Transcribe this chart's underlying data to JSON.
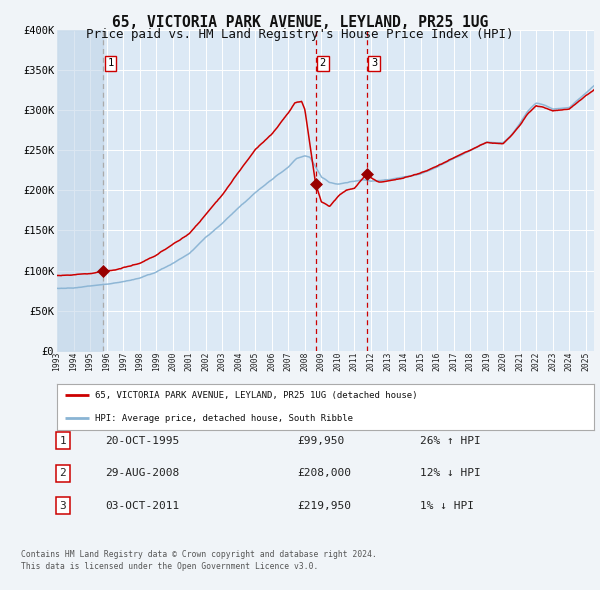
{
  "title": "65, VICTORIA PARK AVENUE, LEYLAND, PR25 1UG",
  "subtitle": "Price paid vs. HM Land Registry's House Price Index (HPI)",
  "title_fontsize": 10.5,
  "subtitle_fontsize": 9,
  "background_color": "#f0f4f8",
  "plot_bg_color": "#dce9f5",
  "grid_color": "#ffffff",
  "transactions": [
    {
      "num": 1,
      "date_label": "20-OCT-1995",
      "x_year": 1995.8,
      "price": 99950,
      "pct": "26%",
      "dir": "↑"
    },
    {
      "num": 2,
      "date_label": "29-AUG-2008",
      "x_year": 2008.65,
      "price": 208000,
      "pct": "12%",
      "dir": "↓"
    },
    {
      "num": 3,
      "date_label": "03-OCT-2011",
      "x_year": 2011.75,
      "price": 219950,
      "pct": "1%",
      "dir": "↓"
    }
  ],
  "ylabel_ticks": [
    "£0",
    "£50K",
    "£100K",
    "£150K",
    "£200K",
    "£250K",
    "£300K",
    "£350K",
    "£400K"
  ],
  "ytick_values": [
    0,
    50000,
    100000,
    150000,
    200000,
    250000,
    300000,
    350000,
    400000
  ],
  "xmin": 1993,
  "xmax": 2025.5,
  "ymin": 0,
  "ymax": 400000,
  "hpi_color": "#8ab4d4",
  "price_color": "#cc0000",
  "marker_color": "#990000",
  "hatch_color": "#c0d4e8",
  "legend_label_price": "65, VICTORIA PARK AVENUE, LEYLAND, PR25 1UG (detached house)",
  "legend_label_hpi": "HPI: Average price, detached house, South Ribble",
  "row_data": [
    [
      "1",
      "20-OCT-1995",
      "£99,950",
      "26% ↑ HPI"
    ],
    [
      "2",
      "29-AUG-2008",
      "£208,000",
      "12% ↓ HPI"
    ],
    [
      "3",
      "03-OCT-2011",
      "£219,950",
      "1% ↓ HPI"
    ]
  ],
  "footer": "Contains HM Land Registry data © Crown copyright and database right 2024.\nThis data is licensed under the Open Government Licence v3.0."
}
